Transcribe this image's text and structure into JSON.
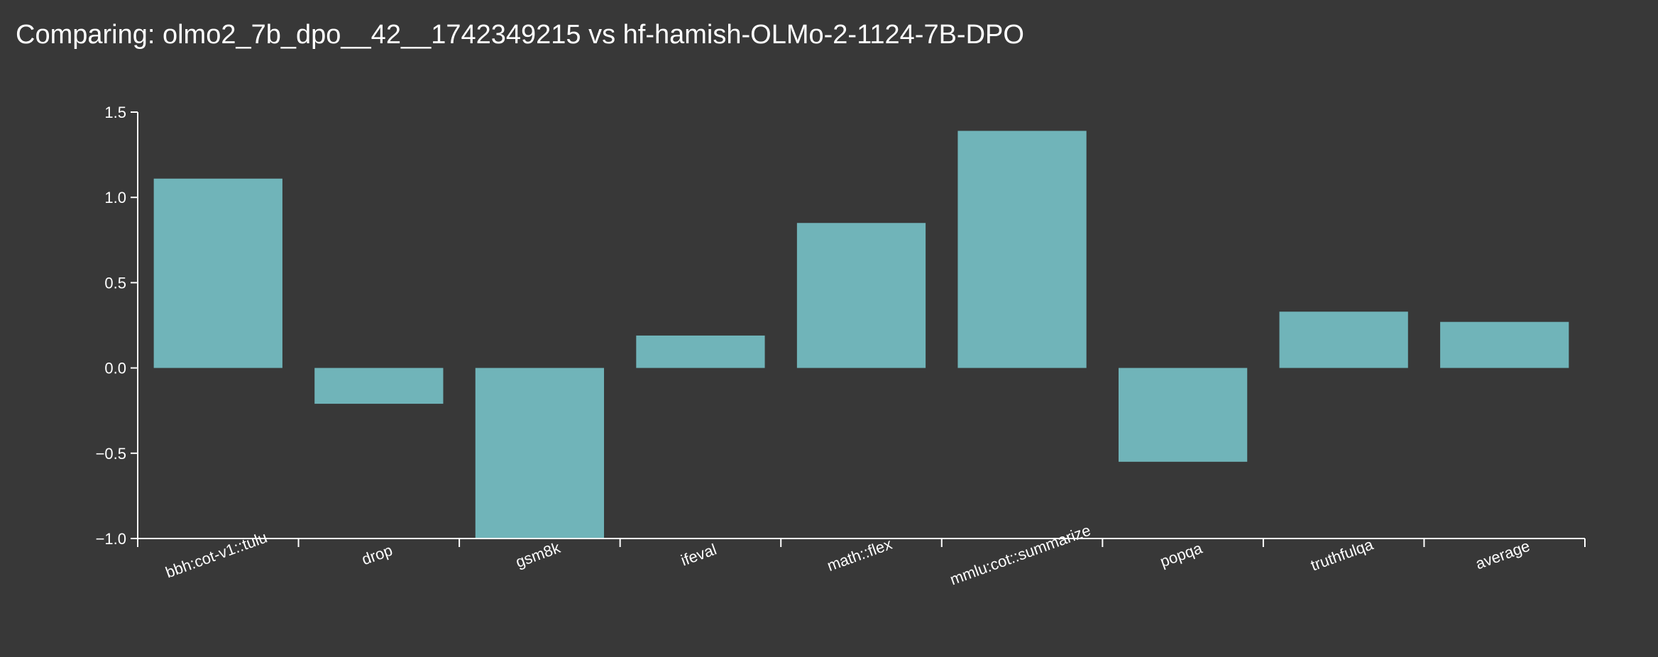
{
  "title": "Comparing: olmo2_7b_dpo__42__1742349215 vs hf-hamish-OLMo-2-1124-7B-DPO",
  "colors": {
    "background": "#383838",
    "bar": "#70b4b9",
    "axis": "#ffffff",
    "text": "#ffffff"
  },
  "chart_data": {
    "type": "bar",
    "categories": [
      "bbh:cot-v1::tulu",
      "drop",
      "gsm8k",
      "ifeval",
      "math::flex",
      "mmlu:cot::summarize",
      "popqa",
      "truthfulqa",
      "average"
    ],
    "values": [
      1.11,
      -0.21,
      -1.0,
      0.19,
      0.85,
      1.39,
      -0.55,
      0.33,
      0.27
    ],
    "yticks": [
      "1.5",
      "1.0",
      "0.5",
      "0.0",
      "−0.5",
      "−1.0"
    ],
    "ytick_values": [
      1.5,
      1.0,
      0.5,
      0.0,
      -0.5,
      -1.0
    ],
    "ylim": [
      -1.0,
      1.5
    ],
    "xlabel": "",
    "ylabel": "",
    "grid": false,
    "legend": false
  }
}
